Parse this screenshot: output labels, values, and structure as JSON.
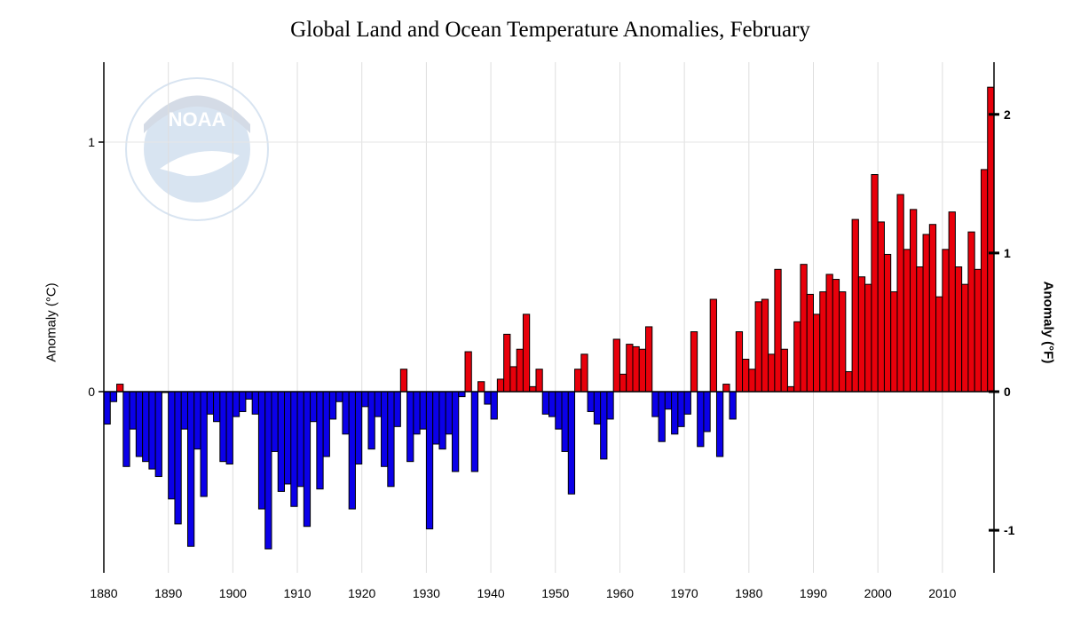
{
  "chart_data": {
    "type": "bar",
    "title": "Global Land and Ocean Temperature Anomalies, February",
    "ylabel_left": "Anomaly (°C)",
    "ylabel_right": "Anomaly (°F)",
    "x_ticks": [
      1880,
      1890,
      1900,
      1910,
      1920,
      1930,
      1940,
      1950,
      1960,
      1970,
      1980,
      1990,
      2000,
      2010
    ],
    "y_ticks_left": [
      0,
      1
    ],
    "y_ticks_right": [
      -1,
      0,
      1,
      2
    ],
    "xlim": [
      1880,
      2016
    ],
    "ylim_celsius": [
      -0.72,
      1.32
    ],
    "grid": "vertical",
    "positive_color": "#e8000b",
    "negative_color": "#0b00e8",
    "years_start": 1880,
    "values": [
      -0.13,
      -0.04,
      0.03,
      -0.3,
      -0.15,
      -0.26,
      -0.28,
      -0.31,
      -0.34,
      0.0,
      -0.43,
      -0.53,
      -0.15,
      -0.62,
      -0.23,
      -0.42,
      -0.09,
      -0.12,
      -0.28,
      -0.29,
      -0.1,
      -0.08,
      -0.03,
      -0.09,
      -0.47,
      -0.63,
      -0.24,
      -0.4,
      -0.37,
      -0.46,
      -0.38,
      -0.54,
      -0.12,
      -0.39,
      -0.26,
      -0.11,
      -0.04,
      -0.17,
      -0.47,
      -0.29,
      -0.06,
      -0.23,
      -0.1,
      -0.3,
      -0.38,
      -0.14,
      0.09,
      -0.28,
      -0.17,
      -0.15,
      -0.55,
      -0.21,
      -0.23,
      -0.17,
      -0.32,
      -0.02,
      0.16,
      -0.32,
      0.04,
      -0.05,
      -0.11,
      0.05,
      0.23,
      0.1,
      0.17,
      0.31,
      0.02,
      0.09,
      -0.09,
      -0.1,
      -0.15,
      -0.24,
      -0.41,
      0.09,
      0.15,
      -0.08,
      -0.13,
      -0.27,
      -0.11,
      0.21,
      0.07,
      0.19,
      0.18,
      0.17,
      0.26,
      -0.1,
      -0.2,
      -0.07,
      -0.17,
      -0.14,
      -0.09,
      0.24,
      -0.22,
      -0.16,
      0.37,
      -0.26,
      0.03,
      -0.11,
      0.24,
      0.13,
      0.09,
      0.36,
      0.37,
      0.15,
      0.49,
      0.17,
      0.02,
      0.28,
      0.51,
      0.39,
      0.31,
      0.4,
      0.47,
      0.45,
      0.4,
      0.08,
      0.69,
      0.46,
      0.43,
      0.87,
      0.68,
      0.55,
      0.4,
      0.79,
      0.57,
      0.73,
      0.5,
      0.63,
      0.67,
      0.38,
      0.57,
      0.72,
      0.5,
      0.43,
      0.64,
      0.49,
      0.89,
      1.22
    ]
  }
}
